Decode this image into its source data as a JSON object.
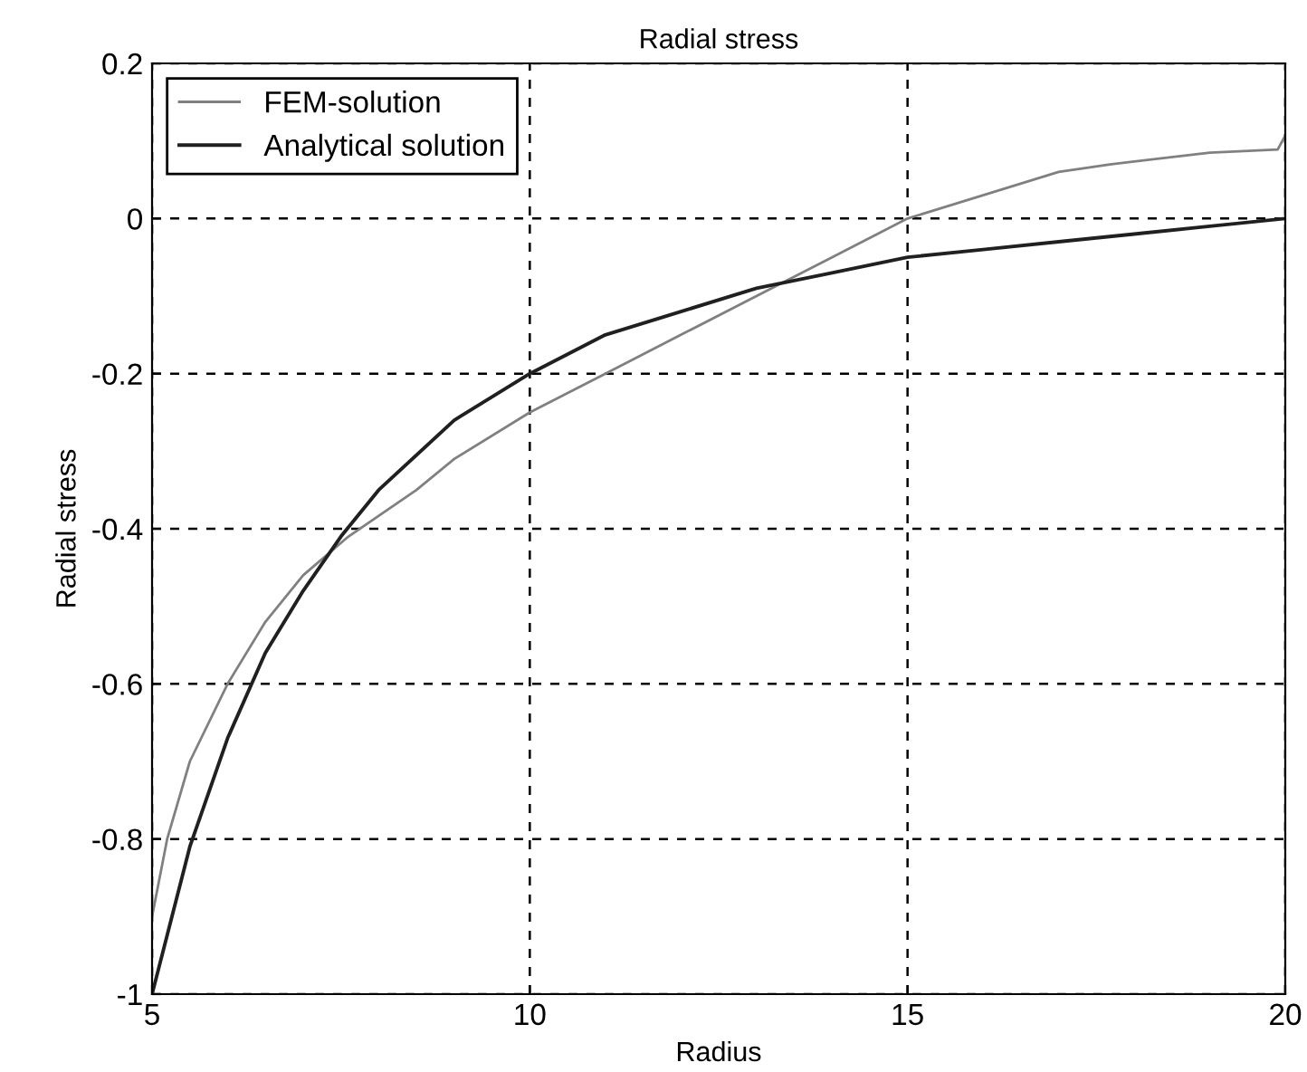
{
  "chart_data": {
    "type": "line",
    "title": "Radial stress",
    "xlabel": "Radius",
    "ylabel": "Radial stress",
    "xlim": [
      5,
      20
    ],
    "ylim": [
      -1,
      0.2
    ],
    "xticks": [
      5,
      10,
      15,
      20
    ],
    "yticks": [
      -1,
      -0.8,
      -0.6,
      -0.4,
      -0.2,
      0,
      0.2
    ],
    "grid": true,
    "legend": "top left",
    "line_style": "solid",
    "marker": "none",
    "series": [
      {
        "name": "FEM-solution",
        "color": "#808080",
        "x": [
          5,
          5.2,
          5.5,
          6,
          6.5,
          7,
          7.6,
          8.5,
          9,
          10,
          11,
          12,
          13,
          14,
          15,
          16,
          17,
          17.7,
          19,
          19.9,
          20
        ],
        "values": [
          -0.9,
          -0.8,
          -0.7,
          -0.6,
          -0.52,
          -0.46,
          -0.41,
          -0.35,
          -0.31,
          -0.25,
          -0.2,
          -0.15,
          -0.1,
          -0.05,
          0.0,
          0.03,
          0.06,
          0.07,
          0.085,
          0.089,
          0.107
        ]
      },
      {
        "name": "Analytical solution",
        "color": "#202020",
        "x": [
          5,
          5.5,
          6,
          6.5,
          7,
          7.5,
          8,
          9,
          10,
          11,
          12,
          13,
          14,
          15,
          16,
          17,
          18,
          19,
          20
        ],
        "values": [
          -1,
          -0.81,
          -0.67,
          -0.56,
          -0.48,
          -0.41,
          -0.35,
          -0.26,
          -0.2,
          -0.15,
          -0.12,
          -0.09,
          -0.07,
          -0.05,
          -0.04,
          -0.03,
          -0.02,
          -0.01,
          0
        ]
      }
    ]
  }
}
